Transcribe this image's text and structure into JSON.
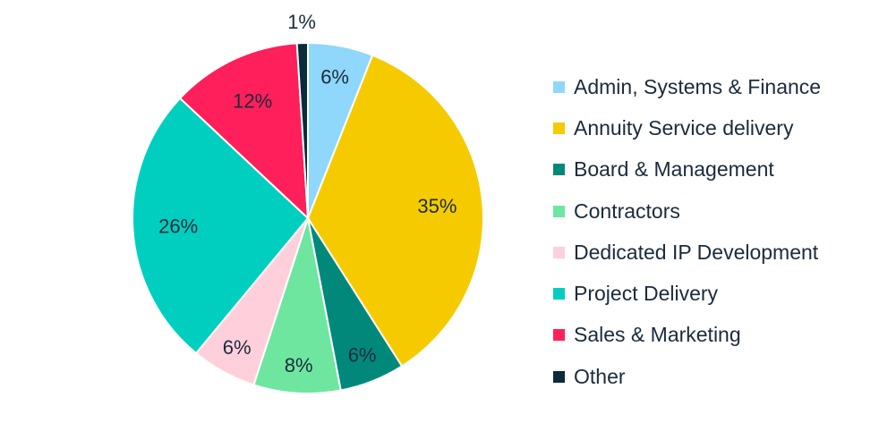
{
  "chart_data": {
    "type": "pie",
    "categories": [
      "Admin, Systems & Finance",
      "Annuity Service delivery",
      "Board & Management",
      "Contractors",
      "Dedicated IP Development",
      "Project Delivery",
      "Sales & Marketing",
      "Other"
    ],
    "values": [
      6,
      35,
      6,
      8,
      6,
      26,
      12,
      1
    ],
    "data_labels": [
      "6%",
      "35%",
      "6%",
      "8%",
      "6%",
      "26%",
      "12%",
      "1%"
    ],
    "colors": [
      "#8fd7fb",
      "#f5cb00",
      "#00897b",
      "#6ee6a0",
      "#ffd0dc",
      "#00cfc0",
      "#ff1f5a",
      "#0b2a3c"
    ],
    "title": "",
    "legend_position": "right",
    "start": "12 o'clock, clockwise"
  }
}
